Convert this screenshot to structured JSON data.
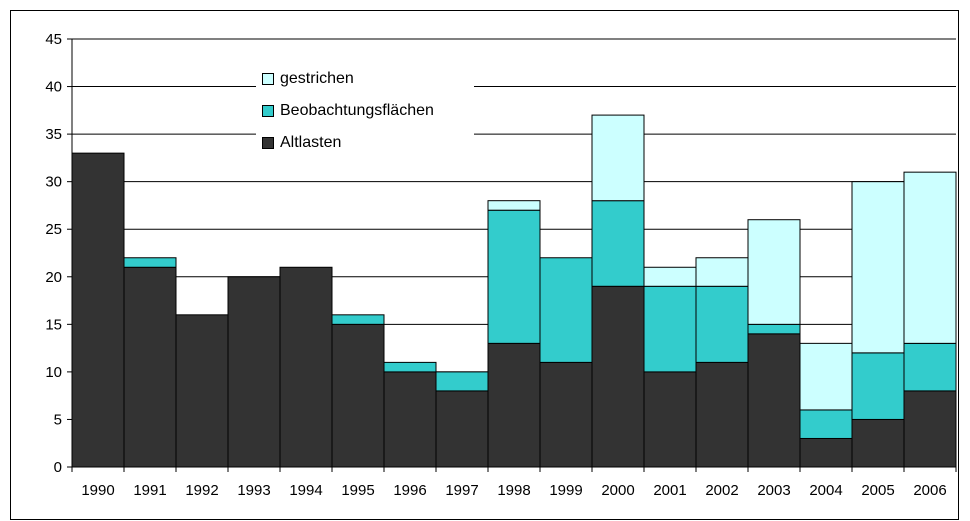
{
  "chart_data": {
    "type": "bar",
    "stacked": true,
    "categories": [
      "1990",
      "1991",
      "1992",
      "1993",
      "1994",
      "1995",
      "1996",
      "1997",
      "1998",
      "1999",
      "2000",
      "2001",
      "2002",
      "2003",
      "2004",
      "2005",
      "2006"
    ],
    "series": [
      {
        "name": "Altlasten",
        "color": "#333333",
        "values": [
          33,
          21,
          16,
          20,
          21,
          15,
          10,
          8,
          13,
          11,
          19,
          10,
          11,
          14,
          3,
          5,
          8
        ]
      },
      {
        "name": "Beobachtungsflächen",
        "color": "#33cccc",
        "values": [
          0,
          1,
          0,
          0,
          0,
          1,
          1,
          2,
          14,
          11,
          9,
          9,
          8,
          1,
          3,
          7,
          5
        ]
      },
      {
        "name": "gestrichen",
        "color": "#ccffff",
        "values": [
          0,
          0,
          0,
          0,
          0,
          0,
          0,
          0,
          1,
          0,
          9,
          2,
          3,
          11,
          7,
          18,
          18
        ]
      }
    ],
    "legend_order": [
      "gestrichen",
      "Beobachtungsflächen",
      "Altlasten"
    ],
    "yticks": [
      "0",
      "5",
      "10",
      "15",
      "20",
      "25",
      "30",
      "35",
      "40",
      "45"
    ],
    "ylim": [
      0,
      45
    ],
    "grid": true,
    "legend_position": "top-left"
  }
}
